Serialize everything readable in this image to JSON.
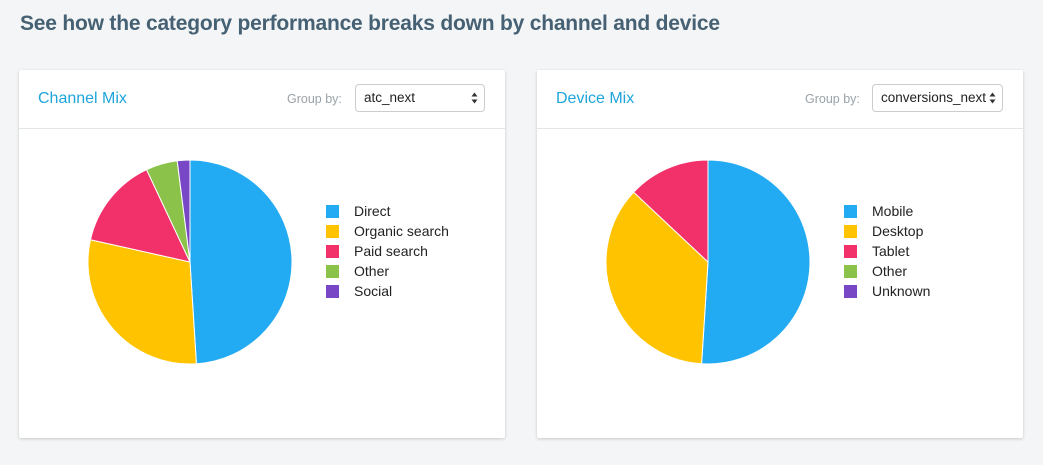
{
  "heading": "See how the category performance breaks down by channel and device",
  "group_by_label": "Group by:",
  "chart_data": [
    {
      "type": "pie",
      "title": "Channel Mix",
      "group_by_value": "atc_next",
      "categories": [
        "Direct",
        "Organic search",
        "Paid search",
        "Other",
        "Social"
      ],
      "values": [
        49,
        29.5,
        14.5,
        5,
        2
      ],
      "colors": [
        "#22aaf2",
        "#ffc300",
        "#f2306a",
        "#8bc34a",
        "#7747c5"
      ],
      "legend_position": "right"
    },
    {
      "type": "pie",
      "title": "Device Mix",
      "group_by_value": "conversions_next",
      "categories": [
        "Mobile",
        "Desktop",
        "Tablet",
        "Other",
        "Unknown"
      ],
      "values": [
        51,
        36,
        13,
        0,
        0
      ],
      "colors": [
        "#22aaf2",
        "#ffc300",
        "#f2306a",
        "#8bc34a",
        "#7747c5"
      ],
      "legend_position": "right"
    }
  ]
}
